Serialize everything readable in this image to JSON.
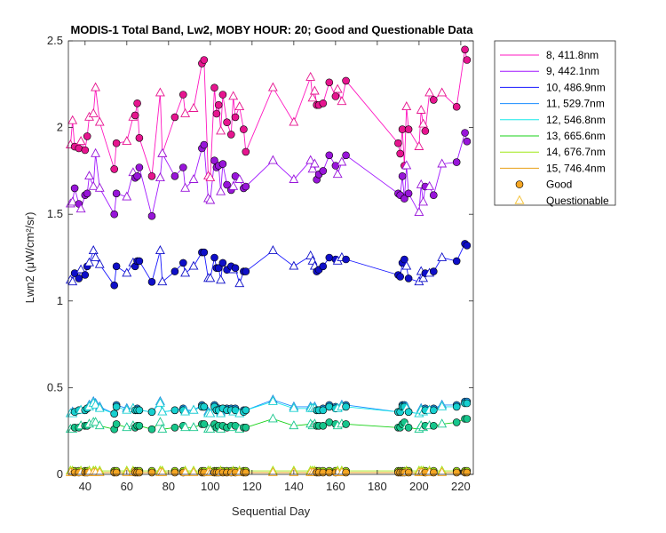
{
  "chart_data": {
    "type": "scatter",
    "title": "MODIS-1 Total Band, Lw2, MOBY HOUR: 20;  Good and Questionable Data",
    "xlabel": "Sequential Day",
    "ylabel": "Lwn2 (μW/cm²/sr)",
    "xlim": [
      32,
      226
    ],
    "ylim": [
      0,
      2.5
    ],
    "xticks": [
      40,
      60,
      80,
      100,
      120,
      140,
      160,
      180,
      200,
      220
    ],
    "xtick_labels": [
      "40",
      "60",
      "80",
      "100",
      "120",
      "140",
      "160",
      "180",
      "200",
      "220"
    ],
    "yticks": [
      0,
      0.5,
      1,
      1.5,
      2,
      2.5
    ],
    "ytick_labels": [
      "0",
      "0.5",
      "1",
      "1.5",
      "2",
      "2.5"
    ],
    "grid": false,
    "legend_position": "outside-right",
    "x": [
      33,
      34,
      35,
      37,
      38,
      40,
      41,
      42,
      44,
      45,
      47,
      54,
      55,
      60,
      63,
      64,
      65,
      66,
      72,
      76,
      77,
      83,
      87,
      88,
      92,
      96,
      97,
      99,
      100,
      102,
      103,
      104,
      105,
      106,
      108,
      110,
      111,
      112,
      114,
      116,
      117,
      130,
      140,
      148,
      149,
      150,
      151,
      152,
      154,
      157,
      160,
      161,
      163,
      165,
      190,
      191,
      192,
      193,
      194,
      195,
      200,
      201,
      202,
      203,
      205,
      207,
      211,
      218,
      222,
      223
    ],
    "quality": [
      "Q",
      "Q",
      "G",
      "G",
      "Q",
      "G",
      "G",
      "Q",
      "Q",
      "Q",
      "Q",
      "G",
      "G",
      "Q",
      "Q",
      "G",
      "G",
      "G",
      "G",
      "Q",
      "Q",
      "G",
      "G",
      "Q",
      "Q",
      "G",
      "G",
      "Q",
      "Q",
      "G",
      "G",
      "G",
      "Q",
      "G",
      "G",
      "G",
      "Q",
      "G",
      "Q",
      "G",
      "G",
      "Q",
      "Q",
      "Q",
      "Q",
      "Q",
      "G",
      "G",
      "G",
      "G",
      "G",
      "Q",
      "Q",
      "G",
      "G",
      "G",
      "G",
      "G",
      "Q",
      "G",
      "Q",
      "Q",
      "Q",
      "G",
      "Q",
      "G",
      "Q",
      "G",
      "G",
      "G"
    ],
    "series": [
      {
        "name": "8, 411.8nm",
        "color": "#ff17c0",
        "marker_color": "#e6158f",
        "values": [
          1.9,
          2.04,
          1.89,
          1.88,
          1.92,
          1.87,
          1.95,
          2.06,
          2.08,
          2.23,
          2.03,
          1.76,
          1.91,
          1.92,
          2.06,
          2.07,
          2.14,
          1.94,
          1.72,
          2.2,
          1.85,
          2.06,
          2.19,
          2.08,
          2.11,
          2.37,
          2.39,
          1.72,
          1.71,
          2.23,
          2.08,
          2.13,
          1.98,
          2.19,
          2.03,
          1.96,
          2.18,
          2.06,
          2.12,
          1.99,
          1.86,
          2.23,
          2.03,
          2.29,
          2.17,
          2.21,
          2.13,
          2.13,
          2.14,
          2.26,
          2.18,
          2.22,
          2.15,
          2.27,
          1.91,
          1.85,
          1.99,
          1.78,
          2.12,
          1.99,
          1.89,
          2.1,
          2.02,
          1.98,
          2.2,
          2.16,
          2.2,
          2.12,
          2.45,
          2.39
        ]
      },
      {
        "name": "9, 442.1nm",
        "color": "#a117ff",
        "marker_color": "#9815d9",
        "values": [
          1.56,
          1.57,
          1.65,
          1.56,
          1.53,
          1.61,
          1.62,
          1.72,
          1.66,
          1.85,
          1.65,
          1.5,
          1.62,
          1.6,
          1.74,
          1.71,
          1.72,
          1.77,
          1.49,
          1.71,
          1.85,
          1.72,
          1.77,
          1.65,
          1.7,
          1.88,
          1.9,
          1.59,
          1.58,
          1.81,
          1.77,
          1.78,
          1.63,
          1.79,
          1.67,
          1.64,
          1.66,
          1.72,
          1.7,
          1.65,
          1.66,
          1.81,
          1.7,
          1.81,
          1.76,
          1.79,
          1.7,
          1.73,
          1.75,
          1.84,
          1.78,
          1.73,
          1.8,
          1.84,
          1.62,
          1.61,
          1.72,
          1.59,
          1.78,
          1.62,
          1.51,
          1.67,
          1.57,
          1.66,
          1.66,
          1.61,
          1.79,
          1.8,
          1.97,
          1.92
        ]
      },
      {
        "name": "10, 486.9nm",
        "color": "#1717ff",
        "marker_color": "#0f0fc8",
        "values": [
          1.12,
          1.11,
          1.16,
          1.13,
          1.18,
          1.15,
          1.2,
          1.22,
          1.29,
          1.25,
          1.21,
          1.09,
          1.2,
          1.16,
          1.22,
          1.2,
          1.23,
          1.23,
          1.11,
          1.29,
          1.11,
          1.17,
          1.22,
          1.16,
          1.2,
          1.28,
          1.28,
          1.13,
          1.13,
          1.25,
          1.19,
          1.19,
          1.12,
          1.22,
          1.18,
          1.2,
          1.18,
          1.19,
          1.1,
          1.17,
          1.17,
          1.29,
          1.2,
          1.26,
          1.23,
          1.2,
          1.17,
          1.18,
          1.2,
          1.25,
          1.24,
          1.23,
          1.25,
          1.24,
          1.15,
          1.14,
          1.22,
          1.24,
          1.2,
          1.13,
          1.11,
          1.17,
          1.13,
          1.16,
          1.16,
          1.17,
          1.25,
          1.23,
          1.33,
          1.32
        ]
      },
      {
        "name": "11, 529.7nm",
        "color": "#178bff",
        "marker_color": "#1f8fe0",
        "values": [
          0.35,
          0.36,
          0.36,
          0.37,
          0.37,
          0.37,
          0.38,
          0.4,
          0.42,
          0.41,
          0.39,
          0.35,
          0.4,
          0.38,
          0.38,
          0.37,
          0.38,
          0.37,
          0.36,
          0.42,
          0.36,
          0.37,
          0.38,
          0.37,
          0.37,
          0.4,
          0.39,
          0.36,
          0.35,
          0.4,
          0.37,
          0.38,
          0.36,
          0.38,
          0.38,
          0.38,
          0.37,
          0.38,
          0.35,
          0.37,
          0.37,
          0.43,
          0.39,
          0.39,
          0.38,
          0.39,
          0.37,
          0.37,
          0.38,
          0.4,
          0.39,
          0.38,
          0.4,
          0.4,
          0.36,
          0.36,
          0.4,
          0.4,
          0.39,
          0.36,
          0.35,
          0.38,
          0.37,
          0.38,
          0.37,
          0.38,
          0.4,
          0.4,
          0.42,
          0.42
        ]
      },
      {
        "name": "12, 546.8nm",
        "color": "#17e8e8",
        "marker_color": "#17d0d0",
        "values": [
          0.35,
          0.35,
          0.36,
          0.37,
          0.37,
          0.37,
          0.38,
          0.39,
          0.41,
          0.4,
          0.38,
          0.35,
          0.39,
          0.37,
          0.38,
          0.37,
          0.37,
          0.37,
          0.36,
          0.41,
          0.36,
          0.37,
          0.37,
          0.36,
          0.37,
          0.39,
          0.39,
          0.35,
          0.35,
          0.39,
          0.37,
          0.37,
          0.35,
          0.38,
          0.37,
          0.37,
          0.36,
          0.37,
          0.35,
          0.36,
          0.37,
          0.42,
          0.38,
          0.38,
          0.38,
          0.38,
          0.37,
          0.37,
          0.37,
          0.39,
          0.38,
          0.38,
          0.39,
          0.39,
          0.36,
          0.36,
          0.39,
          0.39,
          0.38,
          0.36,
          0.35,
          0.37,
          0.36,
          0.37,
          0.37,
          0.37,
          0.39,
          0.39,
          0.41,
          0.41
        ]
      },
      {
        "name": "13, 665.6nm",
        "color": "#17d117",
        "marker_color": "#17c68c",
        "values": [
          0.26,
          0.26,
          0.27,
          0.27,
          0.28,
          0.28,
          0.28,
          0.29,
          0.3,
          0.3,
          0.28,
          0.26,
          0.29,
          0.27,
          0.28,
          0.27,
          0.28,
          0.28,
          0.26,
          0.3,
          0.26,
          0.27,
          0.28,
          0.27,
          0.27,
          0.29,
          0.29,
          0.26,
          0.26,
          0.29,
          0.27,
          0.28,
          0.26,
          0.28,
          0.27,
          0.28,
          0.27,
          0.28,
          0.26,
          0.27,
          0.27,
          0.32,
          0.28,
          0.29,
          0.28,
          0.29,
          0.28,
          0.28,
          0.28,
          0.3,
          0.29,
          0.28,
          0.29,
          0.29,
          0.27,
          0.27,
          0.29,
          0.3,
          0.28,
          0.27,
          0.26,
          0.28,
          0.27,
          0.28,
          0.28,
          0.28,
          0.29,
          0.3,
          0.32,
          0.32
        ]
      },
      {
        "name": "14, 676.7nm",
        "color": "#a0e817",
        "marker_color": "#a0e817",
        "values": [
          0.02,
          0.02,
          0.02,
          0.02,
          0.02,
          0.02,
          0.02,
          0.02,
          0.02,
          0.02,
          0.02,
          0.02,
          0.02,
          0.02,
          0.02,
          0.02,
          0.02,
          0.02,
          0.02,
          0.02,
          0.02,
          0.02,
          0.02,
          0.02,
          0.02,
          0.02,
          0.02,
          0.02,
          0.02,
          0.02,
          0.02,
          0.02,
          0.02,
          0.02,
          0.02,
          0.02,
          0.02,
          0.02,
          0.02,
          0.02,
          0.02,
          0.02,
          0.02,
          0.02,
          0.02,
          0.02,
          0.02,
          0.02,
          0.02,
          0.02,
          0.02,
          0.02,
          0.02,
          0.02,
          0.02,
          0.02,
          0.02,
          0.02,
          0.02,
          0.02,
          0.02,
          0.02,
          0.02,
          0.02,
          0.02,
          0.02,
          0.02,
          0.02,
          0.02,
          0.02
        ]
      },
      {
        "name": "15, 746.4nm",
        "color": "#e8a017",
        "marker_color": "#f5a623",
        "values": [
          0.01,
          0.01,
          0.01,
          0.01,
          0.01,
          0.01,
          0.01,
          0.01,
          0.01,
          0.01,
          0.01,
          0.01,
          0.01,
          0.01,
          0.01,
          0.01,
          0.01,
          0.01,
          0.01,
          0.01,
          0.01,
          0.01,
          0.01,
          0.01,
          0.01,
          0.01,
          0.01,
          0.01,
          0.01,
          0.01,
          0.01,
          0.01,
          0.01,
          0.01,
          0.01,
          0.01,
          0.01,
          0.01,
          0.01,
          0.01,
          0.01,
          0.01,
          0.01,
          0.01,
          0.01,
          0.01,
          0.01,
          0.01,
          0.01,
          0.01,
          0.01,
          0.01,
          0.01,
          0.01,
          0.01,
          0.01,
          0.01,
          0.01,
          0.01,
          0.01,
          0.01,
          0.01,
          0.01,
          0.01,
          0.01,
          0.01,
          0.01,
          0.01,
          0.01,
          0.01
        ]
      }
    ],
    "legend": {
      "entries": [
        "8, 411.8nm",
        "9, 442.1nm",
        "10, 486.9nm",
        "11, 529.7nm",
        "12, 546.8nm",
        "13, 665.6nm",
        "14, 676.7nm",
        "15, 746.4nm",
        "Good",
        "Questionable"
      ],
      "good_color": "#f5a623",
      "questionable_color": "#f5c542"
    },
    "colors": {
      "axis": "#262626",
      "background": "#ffffff"
    }
  }
}
